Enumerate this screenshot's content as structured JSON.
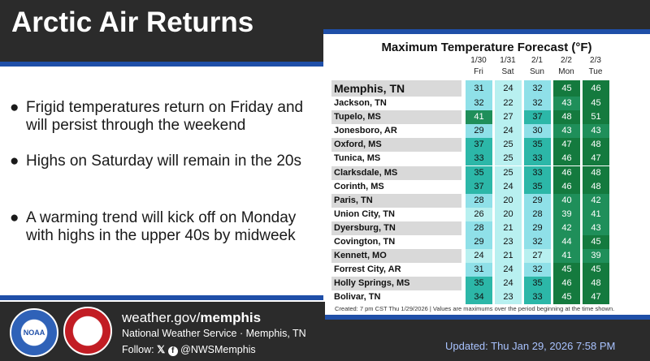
{
  "title": "Arctic Air Returns",
  "bullets": [
    "Frigid temperatures return on Friday and will persist through the weekend",
    "Highs on Saturday will remain in the 20s",
    "A warming trend will kick off on Monday with highs in the upper 40s by midweek"
  ],
  "table": {
    "title": "Maximum Temperature Forecast (°F)",
    "columns": [
      {
        "date": "1/30",
        "day": "Fri"
      },
      {
        "date": "1/31",
        "day": "Sat"
      },
      {
        "date": "2/1",
        "day": "Sun"
      },
      {
        "date": "2/2",
        "day": "Mon"
      },
      {
        "date": "2/3",
        "day": "Tue"
      }
    ],
    "rows": [
      {
        "city": "Memphis, TN",
        "values": [
          31,
          24,
          32,
          45,
          46
        ]
      },
      {
        "city": "Jackson, TN",
        "values": [
          32,
          22,
          32,
          43,
          45
        ]
      },
      {
        "city": "Tupelo, MS",
        "values": [
          41,
          27,
          37,
          48,
          51
        ]
      },
      {
        "city": "Jonesboro, AR",
        "values": [
          29,
          24,
          30,
          43,
          43
        ]
      },
      {
        "city": "Oxford, MS",
        "values": [
          37,
          25,
          35,
          47,
          48
        ]
      },
      {
        "city": "Tunica, MS",
        "values": [
          33,
          25,
          33,
          46,
          47
        ]
      },
      {
        "city": "Clarksdale, MS",
        "values": [
          35,
          25,
          33,
          46,
          48
        ]
      },
      {
        "city": "Corinth, MS",
        "values": [
          37,
          24,
          35,
          46,
          48
        ]
      },
      {
        "city": "Paris, TN",
        "values": [
          28,
          20,
          29,
          40,
          42
        ]
      },
      {
        "city": "Union City, TN",
        "values": [
          26,
          20,
          28,
          39,
          41
        ]
      },
      {
        "city": "Dyersburg, TN",
        "values": [
          28,
          21,
          29,
          42,
          43
        ]
      },
      {
        "city": "Covington, TN",
        "values": [
          29,
          23,
          32,
          44,
          45
        ]
      },
      {
        "city": "Kennett, MO",
        "values": [
          24,
          21,
          27,
          41,
          39
        ]
      },
      {
        "city": "Forrest City, AR",
        "values": [
          31,
          24,
          32,
          45,
          45
        ]
      },
      {
        "city": "Holly Springs, MS",
        "values": [
          35,
          24,
          35,
          46,
          48
        ]
      },
      {
        "city": "Bolivar, TN",
        "values": [
          34,
          23,
          33,
          45,
          47
        ]
      }
    ],
    "footnote": "Created: 7 pm CST Thu 1/29/2026  |  Values are maximums over the period beginning at the time shown."
  },
  "colors": {
    "accent_blue": "#1f4fa8",
    "cool_cell": "#8fe0e8",
    "cooler_cell": "#b8f0f0",
    "mid_cell": "#2cb7a8",
    "warm_cell": "#1f8f5a",
    "warmer_cell": "#147a3e"
  },
  "footer": {
    "website_prefix": "weather.gov/",
    "website_bold": "memphis",
    "office": "National Weather Service · Memphis, TN",
    "follow_label": "Follow:",
    "handle": "@NWSMemphis",
    "updated": "Updated: Thu Jan 29, 2026 7:58 PM",
    "logo1_text": "NOAA",
    "logo2_text": "NATIONAL WEATHER SERVICE"
  }
}
